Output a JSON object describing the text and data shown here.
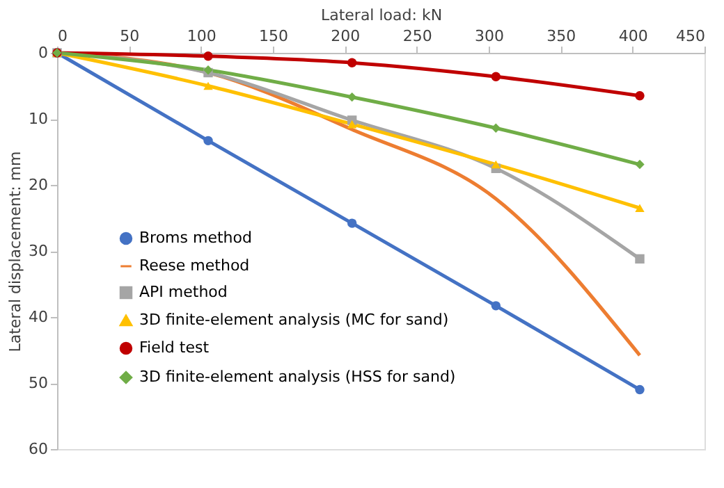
{
  "chart_data": {
    "type": "line",
    "xlabel": "Lateral load: kN",
    "ylabel": "Lateral displacement: mm",
    "x": [
      0,
      105,
      205,
      305,
      405
    ],
    "xlim": [
      0,
      450
    ],
    "xticks": [
      0,
      50,
      100,
      150,
      200,
      250,
      300,
      350,
      400,
      450
    ],
    "ylim": [
      60,
      0
    ],
    "yticks": [
      0,
      10,
      20,
      30,
      40,
      50,
      60
    ],
    "grid": false,
    "legend": "bottom left",
    "line_style": "solid",
    "series": [
      {
        "name": "Broms method",
        "color": "#4472c4",
        "marker": "circle",
        "values": [
          0,
          13.3,
          25.8,
          38.3,
          51
        ]
      },
      {
        "name": "Reese method",
        "color": "#ed7d31",
        "marker": "none",
        "values": [
          0,
          3,
          11.6,
          22.1,
          45.8
        ]
      },
      {
        "name": "API method",
        "color": "#a5a5a5",
        "marker": "square",
        "values": [
          0,
          3,
          10.2,
          17.5,
          31.2
        ]
      },
      {
        "name": "3D finite-element analysis (MC for sand)",
        "color": "#ffc000",
        "marker": "triangle",
        "values": [
          0,
          5,
          10.8,
          16.9,
          23.5
        ]
      },
      {
        "name": "Field test",
        "color": "#c00000",
        "marker": "circle",
        "values": [
          0,
          0.5,
          1.5,
          3.6,
          6.5
        ]
      },
      {
        "name": "3D finite-element analysis (HSS for sand)",
        "color": "#70ad47",
        "marker": "diamond",
        "values": [
          0,
          2.6,
          6.7,
          11.4,
          16.9
        ]
      }
    ]
  }
}
